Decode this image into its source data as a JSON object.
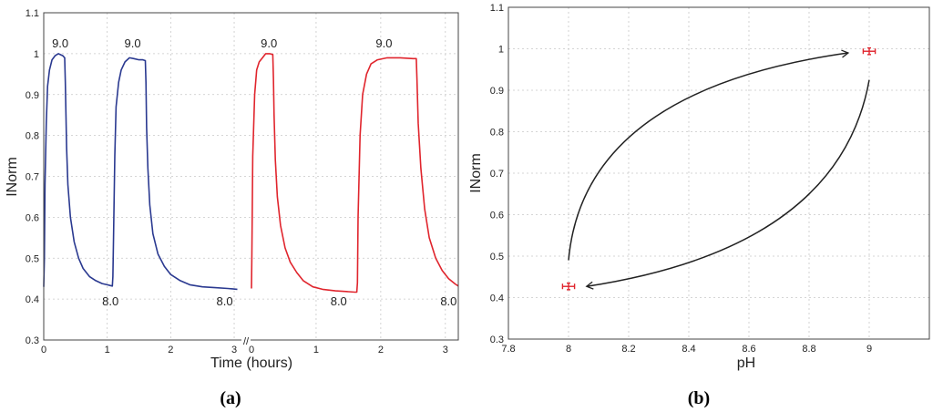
{
  "chart_data": [
    {
      "panel_label": "(a)",
      "type": "line",
      "xlabel": "Time (hours)",
      "ylabel": "INorm",
      "ylim": [
        0.3,
        1.1
      ],
      "yticks": [
        "0.3",
        "0.4",
        "0.5",
        "0.6",
        "0.7",
        "0.8",
        "0.9",
        "1",
        "1.1"
      ],
      "axis_break": "//",
      "grid": true,
      "colors": [
        "#2a3990",
        "#e0252d"
      ],
      "segments": [
        {
          "color": "#2a3990",
          "xlim": [
            0,
            3.1
          ],
          "xticks": [
            "0",
            "1",
            "2",
            "3"
          ],
          "x": [
            0,
            0.01,
            0.02,
            0.04,
            0.06,
            0.09,
            0.13,
            0.18,
            0.23,
            0.3,
            0.33,
            0.34,
            0.35,
            0.36,
            0.38,
            0.42,
            0.48,
            0.55,
            0.62,
            0.72,
            0.82,
            0.92,
            1.0,
            1.05,
            1.08,
            1.09,
            1.1,
            1.12,
            1.14,
            1.18,
            1.22,
            1.28,
            1.35,
            1.42,
            1.5,
            1.56,
            1.6,
            1.61,
            1.62,
            1.64,
            1.67,
            1.72,
            1.8,
            1.9,
            2.0,
            2.15,
            2.3,
            2.5,
            2.7,
            2.9,
            3.05
          ],
          "y": [
            0.43,
            0.5,
            0.68,
            0.83,
            0.92,
            0.96,
            0.985,
            0.995,
            1.0,
            0.995,
            0.99,
            0.93,
            0.85,
            0.77,
            0.68,
            0.6,
            0.54,
            0.5,
            0.475,
            0.455,
            0.445,
            0.438,
            0.435,
            0.433,
            0.432,
            0.455,
            0.55,
            0.75,
            0.87,
            0.93,
            0.96,
            0.98,
            0.99,
            0.988,
            0.985,
            0.985,
            0.983,
            0.93,
            0.82,
            0.72,
            0.63,
            0.56,
            0.51,
            0.48,
            0.46,
            0.445,
            0.435,
            0.43,
            0.428,
            0.426,
            0.424
          ]
        },
        {
          "color": "#e0252d",
          "xlim": [
            0,
            3.2
          ],
          "xticks": [
            "0",
            "1",
            "2",
            "3"
          ],
          "x": [
            0,
            0.005,
            0.02,
            0.05,
            0.08,
            0.12,
            0.17,
            0.22,
            0.28,
            0.33,
            0.34,
            0.35,
            0.37,
            0.4,
            0.45,
            0.52,
            0.6,
            0.7,
            0.8,
            0.95,
            1.1,
            1.3,
            1.5,
            1.6,
            1.63,
            1.64,
            1.65,
            1.68,
            1.72,
            1.78,
            1.85,
            1.95,
            2.1,
            2.3,
            2.5,
            2.55,
            2.56,
            2.58,
            2.62,
            2.68,
            2.75,
            2.85,
            2.95,
            3.05,
            3.15,
            3.2
          ],
          "y": [
            0.426,
            0.5,
            0.75,
            0.9,
            0.96,
            0.98,
            0.99,
            1.0,
            1.0,
            0.998,
            0.94,
            0.85,
            0.74,
            0.65,
            0.58,
            0.525,
            0.49,
            0.465,
            0.445,
            0.43,
            0.424,
            0.42,
            0.418,
            0.417,
            0.417,
            0.44,
            0.6,
            0.8,
            0.9,
            0.95,
            0.975,
            0.985,
            0.99,
            0.99,
            0.988,
            0.988,
            0.94,
            0.83,
            0.72,
            0.62,
            0.55,
            0.5,
            0.47,
            0.45,
            0.437,
            0.432
          ]
        }
      ],
      "annotations": [
        {
          "text": "9.0",
          "x": 0.26,
          "y": 1.015,
          "segment": 0
        },
        {
          "text": "9.0",
          "x": 1.4,
          "y": 1.015,
          "segment": 0
        },
        {
          "text": "8.0",
          "x": 1.05,
          "y": 0.385,
          "segment": 0
        },
        {
          "text": "8.0",
          "x": 2.85,
          "y": 0.385,
          "segment": 0
        },
        {
          "text": "9.0",
          "x": 0.27,
          "y": 1.015,
          "segment": 1
        },
        {
          "text": "9.0",
          "x": 2.05,
          "y": 1.015,
          "segment": 1
        },
        {
          "text": "8.0",
          "x": 1.35,
          "y": 0.385,
          "segment": 1
        },
        {
          "text": "8.0",
          "x": 3.05,
          "y": 0.385,
          "segment": 1
        }
      ]
    },
    {
      "panel_label": "(b)",
      "type": "scatter",
      "xlabel": "pH",
      "ylabel": "INorm",
      "xlim": [
        7.8,
        9.2
      ],
      "ylim": [
        0.3,
        1.1
      ],
      "xticks": [
        "7.8",
        "8",
        "8.2",
        "8.4",
        "8.6",
        "8.8",
        "9"
      ],
      "yticks": [
        "0.3",
        "0.4",
        "0.5",
        "0.6",
        "0.7",
        "0.8",
        "0.9",
        "1",
        "1.1"
      ],
      "grid": true,
      "point_color": "#e0252d",
      "points": [
        {
          "x": 8.0,
          "y": 0.427,
          "xerr": 0.02,
          "yerr": 0.008
        },
        {
          "x": 9.0,
          "y": 0.994,
          "xerr": 0.02,
          "yerr": 0.008
        }
      ],
      "arrows": [
        {
          "from": [
            8.0,
            0.49
          ],
          "ctrl": [
            8.05,
            0.9
          ],
          "to": [
            8.93,
            0.99
          ]
        },
        {
          "from": [
            9.0,
            0.925
          ],
          "ctrl": [
            8.9,
            0.52
          ],
          "to": [
            8.06,
            0.427
          ]
        }
      ]
    }
  ]
}
